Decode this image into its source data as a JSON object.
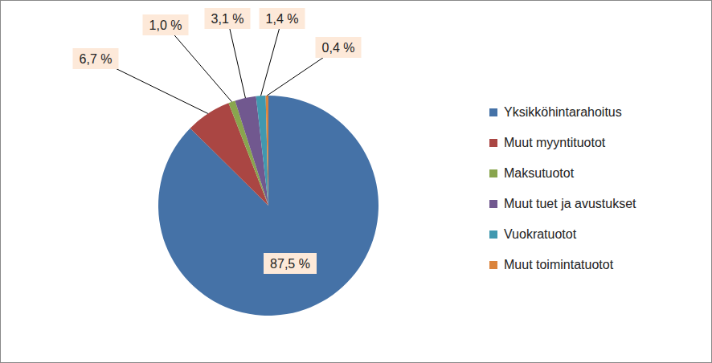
{
  "chart_data": {
    "type": "pie",
    "categories": [
      "Yksikköhintarahoitus",
      "Muut myyntituotot",
      "Maksutuotot",
      "Muut tuet ja avustukset",
      "Vuokratuotot",
      "Muut toimintatuotot"
    ],
    "values": [
      87.5,
      6.7,
      1.0,
      3.1,
      1.4,
      0.4
    ],
    "value_labels": [
      "87,5 %",
      "6,7 %",
      "1,0 %",
      "3,1 %",
      "1,4 %",
      "0,4 %"
    ],
    "colors": [
      "#4572A7",
      "#AA4643",
      "#89A54E",
      "#71588F",
      "#4198AF",
      "#DB843D"
    ],
    "data_labels": true,
    "legend": "right"
  }
}
